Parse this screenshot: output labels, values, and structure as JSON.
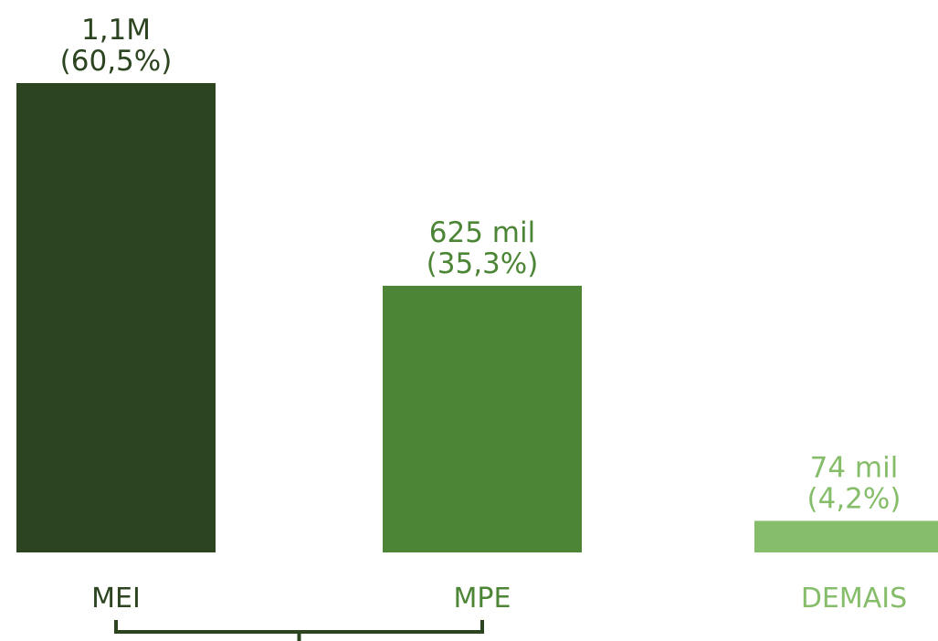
{
  "chart_data": {
    "type": "bar",
    "categories": [
      "MEI",
      "MPE",
      "DEMAIS"
    ],
    "values": [
      1100000,
      625000,
      74000
    ],
    "shares_pct": [
      60.5,
      35.3,
      4.2
    ],
    "value_labels": [
      "1,1M",
      "625 mil",
      "74 mil"
    ],
    "share_labels": [
      "(60,5%)",
      "(35,3%)",
      "(4,2%)"
    ],
    "title": "",
    "xlabel": "",
    "ylabel": "",
    "ylim": [
      0,
      1100000
    ],
    "grid": false,
    "bracket_groups": [
      "MEI",
      "MPE"
    ],
    "colors": [
      "#2c4420",
      "#4d8536",
      "#86bd6a"
    ],
    "label_colors": [
      "#2c4420",
      "#4d8536",
      "#86bd6a"
    ],
    "bracket_color": "#2c4420"
  }
}
